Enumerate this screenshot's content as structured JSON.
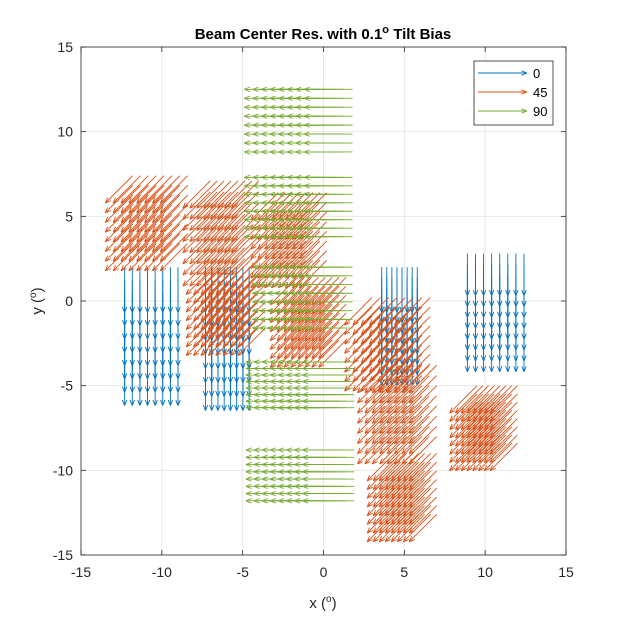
{
  "chart_data": {
    "type": "quiver",
    "title": "Beam Center Res. with 0.1",
    "title_sup": "o",
    "title_suffix": " Tilt Bias",
    "xlabel": "x (",
    "ylabel": "y (",
    "label_sup": "o",
    "label_close": ")",
    "xlim": [
      -15,
      15
    ],
    "ylim": [
      -15,
      15
    ],
    "xticks": [
      -15,
      -10,
      -5,
      0,
      5,
      10,
      15
    ],
    "yticks": [
      -15,
      -10,
      -5,
      0,
      5,
      10,
      15
    ],
    "grid": true,
    "legend_position": "top-right",
    "series": [
      {
        "name": "0",
        "color": "#0072BD",
        "arrow_direction": "down",
        "clusters": [
          {
            "x_range": [
              -12.3,
              -9.0
            ],
            "y_range": [
              -3.5,
              2.0
            ],
            "length": 2.8
          },
          {
            "x_range": [
              -7.3,
              -4.6
            ],
            "y_range": [
              -3.8,
              2.0
            ],
            "length": 2.8
          },
          {
            "x_range": [
              3.6,
              5.8
            ],
            "y_range": [
              -2.3,
              2.0
            ],
            "length": 2.8
          },
          {
            "x_range": [
              8.9,
              12.4
            ],
            "y_range": [
              -1.7,
              2.8
            ],
            "length": 2.6
          }
        ]
      },
      {
        "name": "45",
        "color": "#D95319",
        "arrow_direction": "down-left",
        "clusters": [
          {
            "x_range": [
              -11.8,
              -8.4
            ],
            "y_range": [
              3.4,
              7.4
            ],
            "length": 2.4
          },
          {
            "x_range": [
              -7.0,
              -4.0
            ],
            "y_range": [
              2.5,
              7.1
            ],
            "length": 2.4
          },
          {
            "x_range": [
              -6.8,
              -3.6
            ],
            "y_range": [
              -1.6,
              2.0
            ],
            "length": 2.4
          },
          {
            "x_range": [
              -2.8,
              0.2
            ],
            "y_range": [
              2.4,
              6.4
            ],
            "length": 2.4
          },
          {
            "x_range": [
              -1.6,
              1.4
            ],
            "y_range": [
              -2.3,
              1.4
            ],
            "length": 2.4
          },
          {
            "x_range": [
              3.0,
              6.6
            ],
            "y_range": [
              -3.7,
              0.2
            ],
            "length": 2.4
          },
          {
            "x_range": [
              3.8,
              7.0
            ],
            "y_range": [
              -8.0,
              -3.8
            ],
            "length": 2.4
          },
          {
            "x_range": [
              9.5,
              12.0
            ],
            "y_range": [
              -8.4,
              -5.0
            ],
            "length": 2.4
          },
          {
            "x_range": [
              4.4,
              7.0
            ],
            "y_range": [
              -12.6,
              -9.0
            ],
            "length": 2.4
          }
        ]
      },
      {
        "name": "90",
        "color": "#77AC30",
        "arrow_direction": "left",
        "clusters": [
          {
            "x_range": [
              -1.9,
              1.8
            ],
            "y_range": [
              8.8,
              12.5
            ],
            "length": 3.0
          },
          {
            "x_range": [
              -1.9,
              1.8
            ],
            "y_range": [
              3.8,
              7.3
            ],
            "length": 3.0
          },
          {
            "x_range": [
              -1.4,
              1.8
            ],
            "y_range": [
              -1.6,
              2.0
            ],
            "length": 3.0
          },
          {
            "x_range": [
              -1.6,
              1.9
            ],
            "y_range": [
              -6.3,
              -3.6
            ],
            "length": 3.2
          },
          {
            "x_range": [
              -1.6,
              1.9
            ],
            "y_range": [
              -11.8,
              -8.8
            ],
            "length": 3.2
          }
        ]
      }
    ]
  }
}
